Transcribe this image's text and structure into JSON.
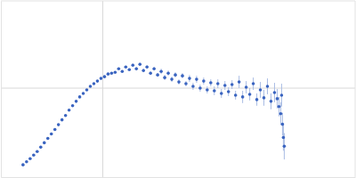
{
  "chart_data": {
    "type": "scatter",
    "color": "#3a64c0",
    "marker": "circle",
    "grid": true,
    "tick_labels": false,
    "xlim": [
      0,
      4
    ],
    "ylim": [
      0,
      2
    ],
    "xticks": [
      1.15
    ],
    "yticks": [
      1.01
    ],
    "x": [
      0.25,
      0.29,
      0.33,
      0.37,
      0.41,
      0.45,
      0.49,
      0.53,
      0.57,
      0.61,
      0.65,
      0.69,
      0.73,
      0.77,
      0.81,
      0.85,
      0.89,
      0.93,
      0.97,
      1.01,
      1.05,
      1.09,
      1.13,
      1.17,
      1.21,
      1.25,
      1.29,
      1.33,
      1.37,
      1.41,
      1.45,
      1.49,
      1.53,
      1.57,
      1.61,
      1.65,
      1.69,
      1.73,
      1.77,
      1.81,
      1.85,
      1.89,
      1.93,
      1.97,
      2.01,
      2.05,
      2.09,
      2.13,
      2.17,
      2.21,
      2.25,
      2.29,
      2.33,
      2.37,
      2.41,
      2.45,
      2.49,
      2.53,
      2.57,
      2.61,
      2.65,
      2.69,
      2.73,
      2.77,
      2.81,
      2.85,
      2.89,
      2.93,
      2.97,
      3.01,
      3.05,
      3.09,
      3.12,
      3.14,
      3.16,
      3.17,
      3.18,
      3.19,
      3.2
    ],
    "series": [
      {
        "values": [
          0.14,
          0.175,
          0.21,
          0.25,
          0.29,
          0.34,
          0.39,
          0.44,
          0.49,
          0.54,
          0.595,
          0.65,
          0.7,
          0.76,
          0.81,
          0.86,
          0.91,
          0.95,
          0.99,
          1.03,
          1.06,
          1.09,
          1.12,
          1.14,
          1.17,
          1.18,
          1.19,
          1.23,
          1.2,
          1.25,
          1.22,
          1.27,
          1.23,
          1.28,
          1.21,
          1.25,
          1.18,
          1.23,
          1.16,
          1.2,
          1.13,
          1.18,
          1.11,
          1.16,
          1.08,
          1.15,
          1.06,
          1.12,
          1.03,
          1.11,
          1.01,
          1.09,
          0.99,
          1.07,
          0.98,
          1.06,
          0.95,
          1.04,
          0.97,
          1.05,
          0.93,
          1.08,
          0.91,
          1.02,
          0.94,
          1.06,
          0.88,
          0.99,
          0.9,
          1.03,
          0.86,
          0.96,
          0.89,
          0.8,
          0.72,
          0.93,
          0.6,
          0.45,
          0.35
        ],
        "errors": [
          0.005,
          0.005,
          0.005,
          0.005,
          0.005,
          0.005,
          0.005,
          0.005,
          0.005,
          0.005,
          0.005,
          0.005,
          0.005,
          0.005,
          0.005,
          0.005,
          0.005,
          0.005,
          0.005,
          0.005,
          0.01,
          0.01,
          0.01,
          0.01,
          0.01,
          0.01,
          0.01,
          0.01,
          0.01,
          0.01,
          0.01,
          0.02,
          0.02,
          0.02,
          0.02,
          0.02,
          0.02,
          0.02,
          0.02,
          0.03,
          0.03,
          0.03,
          0.03,
          0.03,
          0.03,
          0.03,
          0.03,
          0.04,
          0.04,
          0.04,
          0.04,
          0.04,
          0.04,
          0.04,
          0.05,
          0.05,
          0.05,
          0.05,
          0.05,
          0.05,
          0.05,
          0.07,
          0.07,
          0.07,
          0.07,
          0.07,
          0.07,
          0.09,
          0.09,
          0.09,
          0.09,
          0.11,
          0.11,
          0.11,
          0.13,
          0.13,
          0.13,
          0.15,
          0.15
        ]
      }
    ]
  }
}
